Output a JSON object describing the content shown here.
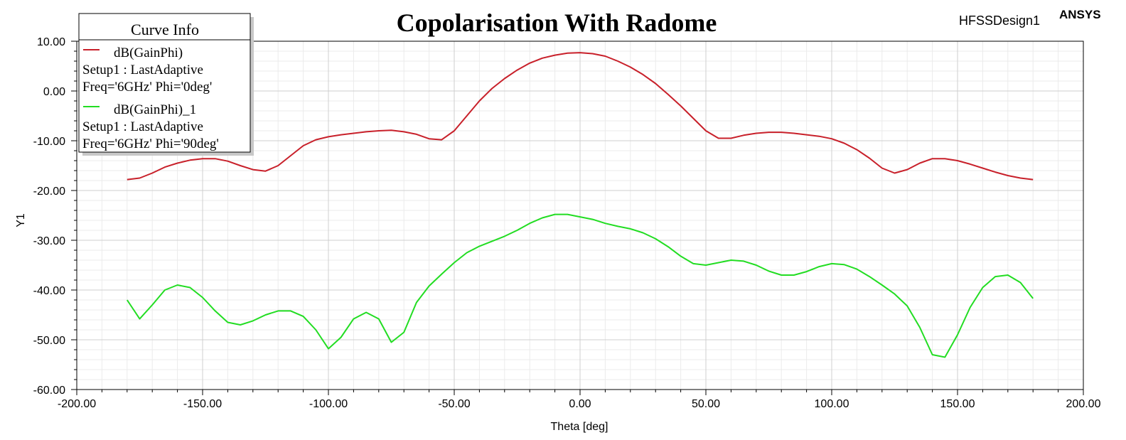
{
  "header": {
    "design_name": "HFSSDesign1",
    "brand": "ANSYS"
  },
  "legend": {
    "heading": "Curve Info",
    "entries": [
      {
        "name": "dB(GainPhi)",
        "setup": "Setup1 : LastAdaptive",
        "params": "Freq='6GHz' Phi='0deg'",
        "color": "#c8202a"
      },
      {
        "name": "dB(GainPhi)_1",
        "setup": "Setup1 : LastAdaptive",
        "params": "Freq='6GHz' Phi='90deg'",
        "color": "#22dd22"
      }
    ]
  },
  "chart_data": {
    "type": "line",
    "title": "Copolarisation With Radome",
    "xlabel": "Theta [deg]",
    "ylabel": "Y1",
    "xlim": [
      -200,
      200
    ],
    "ylim": [
      -60,
      10
    ],
    "xticks": [
      -200,
      -150,
      -100,
      -50,
      0,
      50,
      100,
      150,
      200
    ],
    "yticks": [
      -60,
      -50,
      -40,
      -30,
      -20,
      -10,
      0,
      10
    ],
    "xtick_labels": [
      "-200.00",
      "-150.00",
      "-100.00",
      "-50.00",
      "0.00",
      "50.00",
      "100.00",
      "150.00",
      "200.00"
    ],
    "ytick_labels": [
      "-60.00",
      "-50.00",
      "-40.00",
      "-30.00",
      "-20.00",
      "-10.00",
      "0.00",
      "10.00"
    ],
    "grid": true,
    "legend_position": "top-left",
    "series": [
      {
        "name": "dB(GainPhi)",
        "color": "#c8202a",
        "x": [
          -180,
          -175,
          -170,
          -165,
          -160,
          -155,
          -150,
          -145,
          -140,
          -135,
          -130,
          -125,
          -120,
          -115,
          -110,
          -105,
          -100,
          -95,
          -90,
          -85,
          -80,
          -75,
          -70,
          -65,
          -60,
          -55,
          -50,
          -45,
          -40,
          -35,
          -30,
          -25,
          -20,
          -15,
          -10,
          -5,
          0,
          5,
          10,
          15,
          20,
          25,
          30,
          35,
          40,
          45,
          50,
          55,
          60,
          65,
          70,
          75,
          80,
          85,
          90,
          95,
          100,
          105,
          110,
          115,
          120,
          125,
          130,
          135,
          140,
          145,
          150,
          155,
          160,
          165,
          170,
          175,
          180
        ],
        "values": [
          -17.8,
          -17.5,
          -16.5,
          -15.3,
          -14.5,
          -13.9,
          -13.6,
          -13.6,
          -14.1,
          -15.0,
          -15.8,
          -16.1,
          -15.0,
          -13.0,
          -11.0,
          -9.8,
          -9.2,
          -8.8,
          -8.5,
          -8.2,
          -8.0,
          -7.9,
          -8.2,
          -8.7,
          -9.6,
          -9.8,
          -8.0,
          -5.0,
          -2.0,
          0.5,
          2.5,
          4.2,
          5.6,
          6.6,
          7.2,
          7.6,
          7.7,
          7.5,
          7.0,
          6.0,
          4.8,
          3.3,
          1.5,
          -0.7,
          -3.0,
          -5.5,
          -8.0,
          -9.5,
          -9.5,
          -8.9,
          -8.5,
          -8.3,
          -8.3,
          -8.5,
          -8.8,
          -9.1,
          -9.6,
          -10.5,
          -11.8,
          -13.5,
          -15.5,
          -16.5,
          -15.8,
          -14.5,
          -13.6,
          -13.6,
          -14.0,
          -14.7,
          -15.5,
          -16.3,
          -17.0,
          -17.5,
          -17.8
        ]
      },
      {
        "name": "dB(GainPhi)_1",
        "color": "#22dd22",
        "x": [
          -180,
          -175,
          -170,
          -165,
          -160,
          -155,
          -150,
          -145,
          -140,
          -135,
          -130,
          -125,
          -120,
          -115,
          -110,
          -105,
          -100,
          -95,
          -90,
          -85,
          -80,
          -75,
          -70,
          -65,
          -60,
          -55,
          -50,
          -45,
          -40,
          -35,
          -30,
          -25,
          -20,
          -15,
          -10,
          -5,
          0,
          5,
          10,
          15,
          20,
          25,
          30,
          35,
          40,
          45,
          50,
          55,
          60,
          65,
          70,
          75,
          80,
          85,
          90,
          95,
          100,
          105,
          110,
          115,
          120,
          125,
          130,
          135,
          140,
          145,
          150,
          155,
          160,
          165,
          170,
          175,
          180
        ],
        "values": [
          -42.0,
          -45.8,
          -43.0,
          -40.0,
          -39.0,
          -39.5,
          -41.5,
          -44.2,
          -46.5,
          -47.0,
          -46.2,
          -45.0,
          -44.2,
          -44.2,
          -45.3,
          -48.0,
          -51.8,
          -49.5,
          -45.8,
          -44.5,
          -45.8,
          -50.5,
          -48.5,
          -42.5,
          -39.2,
          -36.8,
          -34.5,
          -32.5,
          -31.2,
          -30.2,
          -29.2,
          -28.0,
          -26.6,
          -25.5,
          -24.8,
          -24.8,
          -25.3,
          -25.8,
          -26.6,
          -27.2,
          -27.7,
          -28.5,
          -29.7,
          -31.3,
          -33.2,
          -34.7,
          -35.0,
          -34.5,
          -34.0,
          -34.2,
          -35.0,
          -36.2,
          -37.0,
          -37.0,
          -36.3,
          -35.3,
          -34.7,
          -34.9,
          -35.8,
          -37.3,
          -39.0,
          -40.8,
          -43.2,
          -47.5,
          -53.0,
          -53.5,
          -49.0,
          -43.5,
          -39.5,
          -37.3,
          -37.0,
          -38.5,
          -41.7
        ]
      }
    ]
  }
}
